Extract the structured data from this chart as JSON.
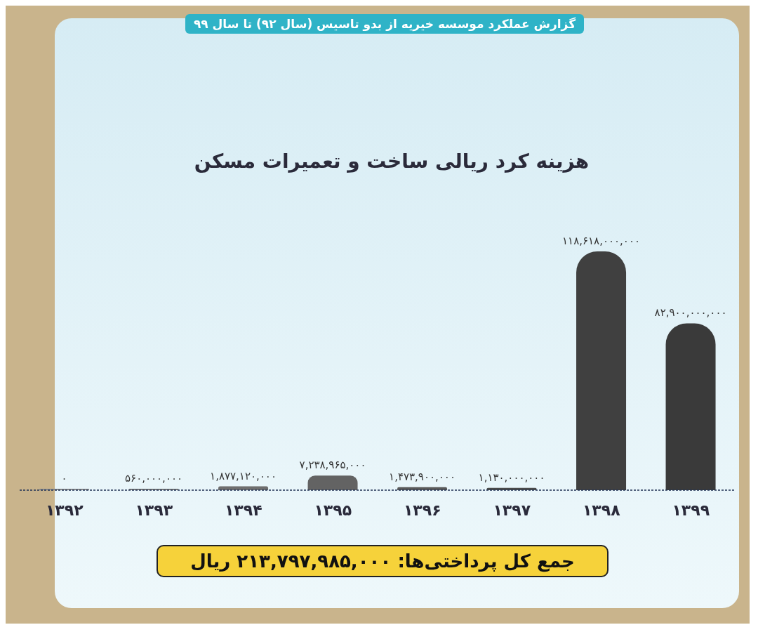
{
  "chart_data": {
    "type": "bar",
    "title": "گزارش عملکرد موسسه خیریه از بدو تاسیس (سال ۹۲) تا سال ۹۹",
    "subtitle": "هزینه کرد ریالی ساخت و تعمیرات مسکن",
    "categories": [
      "۱۳۹۲",
      "۱۳۹۳",
      "۱۳۹۴",
      "۱۳۹۵",
      "۱۳۹۶",
      "۱۳۹۷",
      "۱۳۹۸",
      "۱۳۹۹"
    ],
    "values": [
      0,
      560000000,
      1877120000,
      7238965000,
      1473900000,
      1130000000,
      118618000000,
      82900000000
    ],
    "value_labels": [
      "۰",
      "۵۶۰,۰۰۰,۰۰۰",
      "۱,۸۷۷,۱۲۰,۰۰۰",
      "۷,۲۳۸,۹۶۵,۰۰۰",
      "۱,۴۷۳,۹۰۰,۰۰۰",
      "۱,۱۳۰,۰۰۰,۰۰۰",
      "۱۱۸,۶۱۸,۰۰۰,۰۰۰",
      "۸۲,۹۰۰,۰۰۰,۰۰۰"
    ],
    "colors": [
      "#8c8c8c",
      "#7a7a7a",
      "#6e6e6e",
      "#636363",
      "#595959",
      "#4a4a4a",
      "#404040",
      "#3a3a3a"
    ],
    "annotations": [
      "جمع کل پرداختی‌ها: ۲۱۳,۷۹۷,۹۸۵,۰۰۰ ریال"
    ],
    "grid": false,
    "legend": false
  }
}
